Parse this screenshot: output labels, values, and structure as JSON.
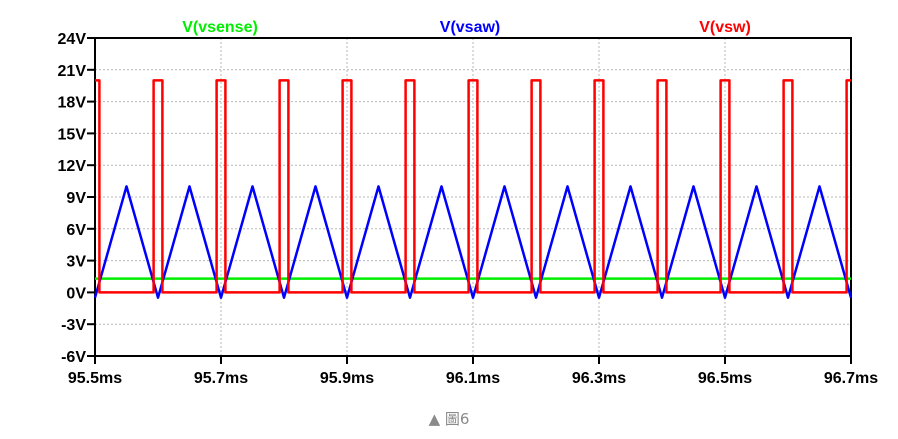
{
  "chart_data": {
    "type": "line",
    "title": "",
    "xlabel": "",
    "ylabel": "",
    "xlim": [
      95.5,
      96.7
    ],
    "ylim": [
      -6,
      24
    ],
    "x_unit": "ms",
    "y_unit": "V",
    "grid": true,
    "legend": "top",
    "x_ticks": [
      "95.5ms",
      "95.7ms",
      "95.9ms",
      "96.1ms",
      "96.3ms",
      "96.5ms",
      "96.7ms"
    ],
    "y_ticks": [
      "24V",
      "21V",
      "18V",
      "15V",
      "12V",
      "9V",
      "6V",
      "3V",
      "0V",
      "-3V",
      "-6V"
    ],
    "series": [
      {
        "name": "V(vsense)",
        "color": "#00ee00",
        "points": [
          [
            95.5,
            1.3
          ],
          [
            96.7,
            1.3
          ]
        ]
      },
      {
        "name": "V(vsaw)",
        "color": "#0000ff",
        "points": [
          [
            95.5,
            -0.5
          ],
          [
            95.55,
            10
          ],
          [
            95.6,
            -0.5
          ],
          [
            95.65,
            10
          ],
          [
            95.7,
            -0.5
          ],
          [
            95.75,
            10
          ],
          [
            95.8,
            -0.5
          ],
          [
            95.85,
            10
          ],
          [
            95.9,
            -0.5
          ],
          [
            95.95,
            10
          ],
          [
            96.0,
            -0.5
          ],
          [
            96.05,
            10
          ],
          [
            96.1,
            -0.5
          ],
          [
            96.15,
            10
          ],
          [
            96.2,
            -0.5
          ],
          [
            96.25,
            10
          ],
          [
            96.3,
            -0.5
          ],
          [
            96.35,
            10
          ],
          [
            96.4,
            -0.5
          ],
          [
            96.45,
            10
          ],
          [
            96.5,
            -0.5
          ],
          [
            96.55,
            10
          ],
          [
            96.6,
            -0.5
          ],
          [
            96.65,
            10
          ],
          [
            96.7,
            -0.5
          ]
        ]
      },
      {
        "name": "V(vsw)",
        "color": "#ff0000",
        "points": [
          [
            95.5,
            20
          ],
          [
            95.507,
            20
          ],
          [
            95.507,
            0
          ],
          [
            95.593,
            0
          ],
          [
            95.593,
            20
          ],
          [
            95.607,
            20
          ],
          [
            95.607,
            0
          ],
          [
            95.693,
            0
          ],
          [
            95.693,
            20
          ],
          [
            95.707,
            20
          ],
          [
            95.707,
            0
          ],
          [
            95.793,
            0
          ],
          [
            95.793,
            20
          ],
          [
            95.807,
            20
          ],
          [
            95.807,
            0
          ],
          [
            95.893,
            0
          ],
          [
            95.893,
            20
          ],
          [
            95.907,
            20
          ],
          [
            95.907,
            0
          ],
          [
            95.993,
            0
          ],
          [
            95.993,
            20
          ],
          [
            96.007,
            20
          ],
          [
            96.007,
            0
          ],
          [
            96.093,
            0
          ],
          [
            96.093,
            20
          ],
          [
            96.107,
            20
          ],
          [
            96.107,
            0
          ],
          [
            96.193,
            0
          ],
          [
            96.193,
            20
          ],
          [
            96.207,
            20
          ],
          [
            96.207,
            0
          ],
          [
            96.293,
            0
          ],
          [
            96.293,
            20
          ],
          [
            96.307,
            20
          ],
          [
            96.307,
            0
          ],
          [
            96.393,
            0
          ],
          [
            96.393,
            20
          ],
          [
            96.407,
            20
          ],
          [
            96.407,
            0
          ],
          [
            96.493,
            0
          ],
          [
            96.493,
            20
          ],
          [
            96.507,
            20
          ],
          [
            96.507,
            0
          ],
          [
            96.593,
            0
          ],
          [
            96.593,
            20
          ],
          [
            96.607,
            20
          ],
          [
            96.607,
            0
          ],
          [
            96.693,
            0
          ],
          [
            96.693,
            20
          ],
          [
            96.7,
            20
          ]
        ]
      }
    ]
  },
  "caption": "▲ 圖6"
}
